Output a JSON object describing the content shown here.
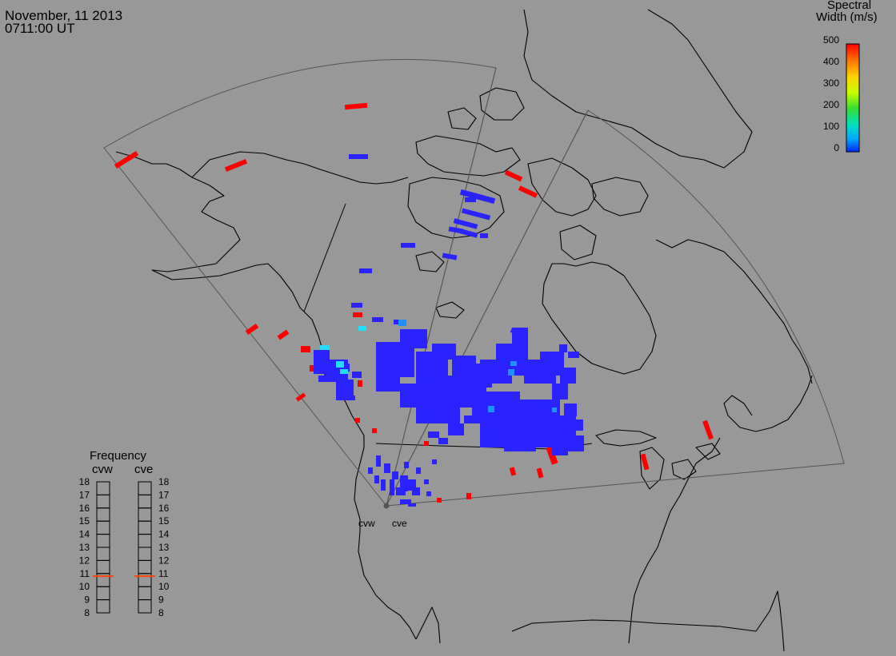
{
  "header": {
    "date": "November, 11 2013",
    "time": "0711:00 UT"
  },
  "colorbar": {
    "title_line1": "Spectral",
    "title_line2": "Width (m/s)",
    "ticks": [
      "500",
      "400",
      "300",
      "200",
      "100",
      "0"
    ],
    "colors_top_to_bottom": [
      "#ff0000",
      "#ff6a00",
      "#ffd000",
      "#c8ff00",
      "#33dd33",
      "#00e0c0",
      "#00a8ff",
      "#0028ff"
    ]
  },
  "frequency_panel": {
    "title": "Frequency",
    "radar_left": "cvw",
    "radar_right": "cve",
    "levels": [
      "18",
      "17",
      "16",
      "15",
      "14",
      "13",
      "12",
      "11",
      "10",
      "9",
      "8"
    ],
    "cvw_mhz": 10.8,
    "cve_mhz": 10.8,
    "marker_color": "#ff4500"
  },
  "site_labels": {
    "west": "cvw",
    "east": "cve"
  },
  "colors": {
    "background": "#989898",
    "coast": "#000000",
    "fov": "#555555",
    "blue_echo": "#2a22ff",
    "red_echo": "#ff0000",
    "cyan_echo": "#22ddff",
    "medblue_echo": "#1e90ff"
  }
}
